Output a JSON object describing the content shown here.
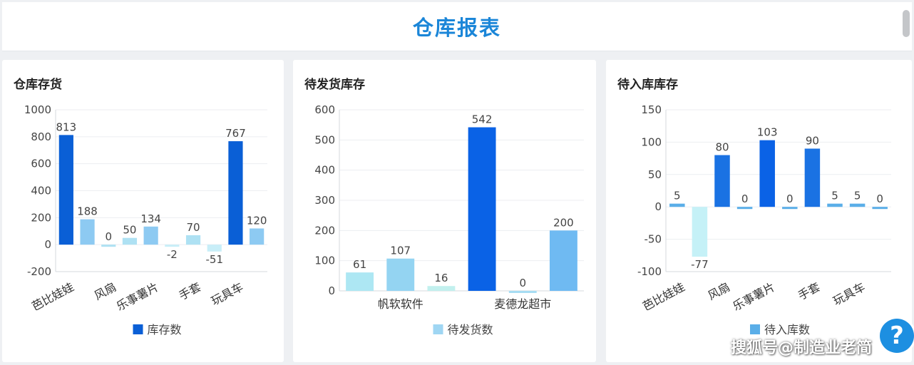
{
  "header": {
    "title": "仓库报表"
  },
  "help": {
    "label": "?"
  },
  "watermark": "搜狐号@制造业老简",
  "panels": [
    {
      "title": "仓库存货"
    },
    {
      "title": "待发货库存"
    },
    {
      "title": "待入库库存"
    }
  ],
  "chart_data": [
    {
      "type": "bar",
      "title": "仓库存货",
      "categories": [
        "芭比娃娃",
        "",
        "风扇",
        "",
        "乐事薯片",
        "",
        "手套",
        "",
        "玩具车",
        ""
      ],
      "series": [
        {
          "name": "库存数",
          "values": [
            813,
            188,
            0,
            50,
            134,
            -2,
            70,
            -51,
            767,
            120
          ]
        }
      ],
      "ylim": [
        -200,
        1000
      ],
      "yticks": [
        -200,
        0,
        200,
        400,
        600,
        800,
        1000
      ],
      "grid": true,
      "legend": "bottom",
      "colors": [
        "#0a5fd6",
        "#8dcaf2",
        "#aee1f3",
        "#aee1f3",
        "#8dcaf2",
        "#c8eef8",
        "#aee1f3",
        "#c8eef8",
        "#0a5fd6",
        "#8dcaf2"
      ]
    },
    {
      "type": "bar",
      "title": "待发货库存",
      "categories": [
        "",
        "帆软软件",
        "",
        "",
        "麦德龙超市",
        ""
      ],
      "series": [
        {
          "name": "待发货数",
          "values": [
            61,
            107,
            16,
            542,
            0,
            200
          ]
        }
      ],
      "ylim": [
        0,
        600
      ],
      "yticks": [
        0,
        100,
        200,
        300,
        400,
        500,
        600
      ],
      "grid": true,
      "legend": "bottom",
      "colors": [
        "#ade7f3",
        "#94d4f2",
        "#c2f0ee",
        "#0a62e6",
        "#a7ddf3",
        "#6fbaf2"
      ]
    },
    {
      "type": "bar",
      "title": "待入库库存",
      "categories": [
        "芭比娃娃",
        "",
        "风扇",
        "",
        "乐事薯片",
        "",
        "手套",
        "",
        "玩具车",
        ""
      ],
      "series": [
        {
          "name": "待入库数",
          "values": [
            5,
            -77,
            80,
            0,
            103,
            0,
            90,
            5,
            5,
            0
          ]
        }
      ],
      "ylim": [
        -100,
        150
      ],
      "yticks": [
        -100,
        -50,
        0,
        50,
        100,
        150
      ],
      "grid": true,
      "legend": "bottom",
      "colors": [
        "#5aaee8",
        "#c5f1f7",
        "#1a72e3",
        "#5aaee8",
        "#0a62e6",
        "#5aaee8",
        "#1a72e3",
        "#5aaee8",
        "#5aaee8",
        "#5aaee8"
      ]
    }
  ]
}
